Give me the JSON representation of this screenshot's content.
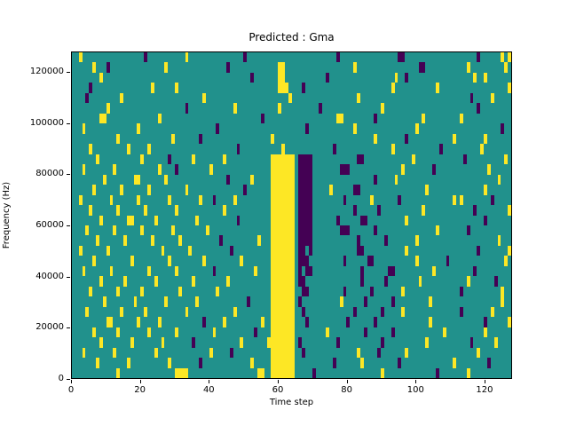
{
  "figure": {
    "title": "Predicted : Gma",
    "xlabel": "Time step",
    "ylabel": "Frequency (Hz)"
  },
  "chart_data": {
    "type": "heatmap",
    "title": "Predicted : Gma",
    "xlabel": "Time step",
    "ylabel": "Frequency (Hz)",
    "x_range": [
      0,
      128
    ],
    "y_range": [
      0,
      128000
    ],
    "x_ticks": [
      0,
      20,
      40,
      60,
      80,
      100,
      120
    ],
    "y_ticks": [
      0,
      20000,
      40000,
      60000,
      80000,
      100000,
      120000
    ],
    "grid": false,
    "legend": "none",
    "colormap": "viridis-discrete",
    "value_colors": {
      "0": "#21918c",
      "1": "#fde725",
      "2": "#440154"
    },
    "value_meaning": {
      "0": "mid",
      "1": "high",
      "2": "low"
    },
    "rows": 32,
    "cols": 128,
    "row_order": "top-to-bottom (row 0 = 124000-128000 Hz, row 31 = 0-4000 Hz)",
    "features": [
      "solid yellow vertical band at time steps 58-64 from 0 to ~86000 Hz",
      "solid dark-purple vertical band at time steps 66-69 from 0 to ~86000 Hz",
      "dense scattered yellow speckle on left half between 20000-90000 Hz",
      "purple speckle cluster around time steps 77-93 between 20000-60000 Hz"
    ],
    "matrix": [
      "00100000000000000000020000000000010000000000000000200000000000000000000000000200000000000000000220000000000000000000002000000101",
      "00000010002000000000000000010000000000000000020000000000000011000000000000000000001000000000000000000220000000000001000000000010",
      "00000000100000000000000000000000000000000000000000002000000011000000000000200000000000000000001002000000000000000000010010000000",
      "00000200000000000000000100000010000000000000000000000000000011100002000000000000000000000000010000000000001000000000000000000001",
      "00002000000000100000000000000000000000100000000000000000000000010000000000000000000100000000000000000000000000000000200000100000",
      "00000000001000000000000000000000020000000000000100000000000010000000000020000000000000000010000000000000000000000000002000000000",
      "00000000110000000000000001000000000000000000000000000002000000000000000000000110000000002000000000000010000000000100000000000000",
      "00010000000000000001000000000000000000000020000000000000000000000000200000000000001000000000000000001000000000000000000000000200",
      "00000000000001000000000000000100000002000000000000000000001000000000000000000000000000001000000002000000000000010000000010000000",
      "00000100000000001000001000000000000000000000000020000000000001000000000000002000000000000000010000000000000200000000000100000000",
      "00000001000000000000100000002000000100000000100000000000001111111022220000000000000220000000000000010000000000000020000000000010",
      "00010000000010000000000001000020000000001000000000000000001111111022220000000022200000000000000010000000020000000000000001000000",
      "00000000010000000011000000010000000000000000020000001000001111111022220000000000000000002000001000000000000000000000000000001000",
      "00000010000000100000001000000000010000000000000000200000001111111022220000010000002200000000000000000001000000000000000010000000",
      "00100000000100000001000000001000000001000200000100000000001111111022220000000002000000010000000200000000000000010100000000200000",
      "00000100000001000000010000000010000000000000100000000000001111111022220000000000002000000200000000000010000000000000020000000001",
      "00000000100000001100000010000000000010000000000020000000001111111022220000000200000022000000000001000000000000000000000020000000",
      "00001000000010000000100000000100000000010000000000000000001111111022220000000022200000002000000000000000001000000002000000000000",
      "00000001000000010000000100000001000000000002000000000010001111111022220000000000000200000002000000001000000000000000000000001000",
      "00100000001000000000000000100000001000000000002000000000001111111022020000000000000220000000000001000000000000000000002000000001",
      "00000010000000000100000000001000000000100000000001000000001111111022200000000002000000220000000000001000000002000000000000000010",
      "00010000000100000000001000000010000000000200000000000100001111111020220000000000000020000000220000000000010000000000020000000000",
      "00000000100000010000000010000000000100000000010000000000001111111022000000000000000020000002000000000100000000000001000000020000",
      "00000100000001000000100000000001000000000010000000000000001111111002200000000002000000020000000010000000000000000200000000000100",
      "00000000010000000010000000010000000010000000000000020000001111111020000000000010000002000000020000000000100000000000000000000100",
      "00001000000000100000010000000000010000000000000100000000001111111002000000000000002000000020000010000000000000000200000000100000",
      "00000000001100000001000001000000000000200000100000000001001111111000200000000000200000002000000000000000100000000000000020000001",
      "00000010000001000000001000000010000000000100000000000200001111111000000000100000000002000000020000000000000010000000000010000000",
      "00000000100000000100000000100000000200000000000001000000011111111020000000000200000000000020000000000001000000000000200000010000",
      "00010000000010000000000010000000000000001000002000000000001111111002000000000000000100000200000001000000000000000000001000000000",
      "00000001000000001000000000001000000002000000000000001000001111111000000000002000000010000000000200000000000000010000000002000000",
      "00000000000001000000000000000011110000000000000000000011001111111000002000000000000000000010000000000000002000000001000000000000"
    ]
  }
}
